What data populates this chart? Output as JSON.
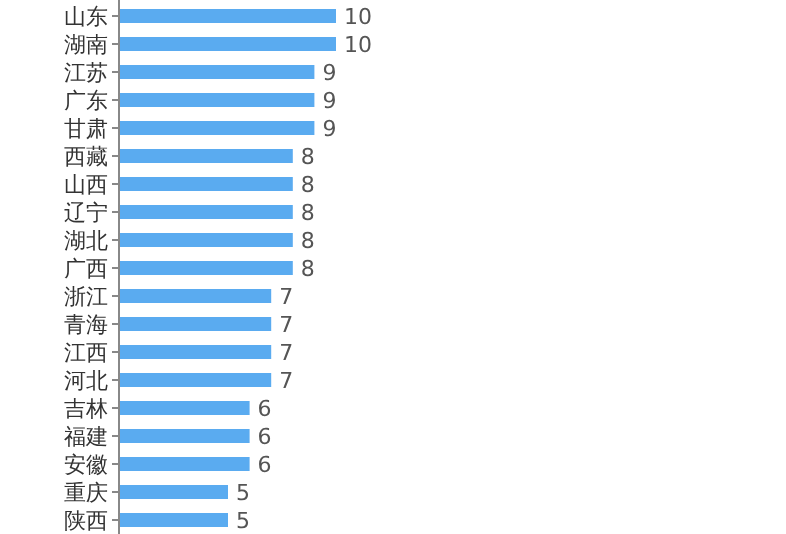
{
  "chart_data": {
    "type": "bar",
    "orientation": "horizontal",
    "categories": [
      "山东",
      "湖南",
      "江苏",
      "广东",
      "甘肃",
      "西藏",
      "山西",
      "辽宁",
      "湖北",
      "广西",
      "浙江",
      "青海",
      "江西",
      "河北",
      "吉林",
      "福建",
      "安徽",
      "重庆",
      "陕西"
    ],
    "values": [
      10,
      10,
      9,
      9,
      9,
      8,
      8,
      8,
      8,
      8,
      7,
      7,
      7,
      7,
      6,
      6,
      6,
      5,
      5
    ],
    "color": "#5aabf0",
    "data_labels": true
  }
}
